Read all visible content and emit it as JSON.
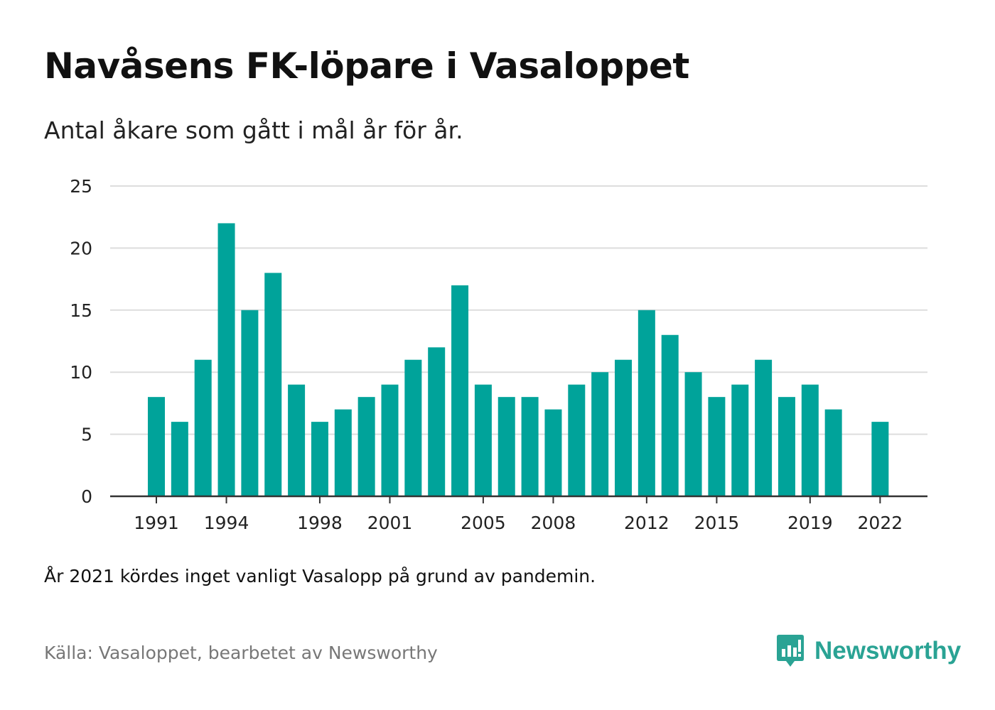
{
  "title": "Navåsens FK-löpare i Vasaloppet",
  "subtitle": "Antal åkare som gått i mål år för år.",
  "note": "År 2021 kördes inget vanligt Vasalopp på grund av pandemin.",
  "source": "Källa: Vasaloppet, bearbetet av Newsworthy",
  "logo_text": "Newsworthy",
  "colors": {
    "bar": "#00a39a",
    "grid": "#dddddd",
    "axis": "#333333",
    "brand": "#2aa394"
  },
  "chart_data": {
    "type": "bar",
    "x": [
      1991,
      1992,
      1993,
      1994,
      1995,
      1996,
      1997,
      1998,
      1999,
      2000,
      2001,
      2002,
      2003,
      2004,
      2005,
      2006,
      2007,
      2008,
      2009,
      2010,
      2011,
      2012,
      2013,
      2014,
      2015,
      2016,
      2017,
      2018,
      2019,
      2020,
      2021,
      2022
    ],
    "values": [
      8,
      6,
      11,
      22,
      15,
      18,
      9,
      6,
      7,
      8,
      9,
      11,
      12,
      17,
      9,
      8,
      8,
      7,
      9,
      10,
      11,
      15,
      13,
      10,
      8,
      9,
      11,
      8,
      9,
      7,
      null,
      6
    ],
    "x_tick_labels": [
      "1991",
      "1994",
      "1998",
      "2001",
      "2005",
      "2008",
      "2012",
      "2015",
      "2019",
      "2022"
    ],
    "y_ticks": [
      0,
      5,
      10,
      15,
      20,
      25
    ],
    "ylim": [
      0,
      25
    ],
    "grid": true,
    "title": "Navåsens FK-löpare i Vasaloppet",
    "xlabel": "",
    "ylabel": ""
  }
}
